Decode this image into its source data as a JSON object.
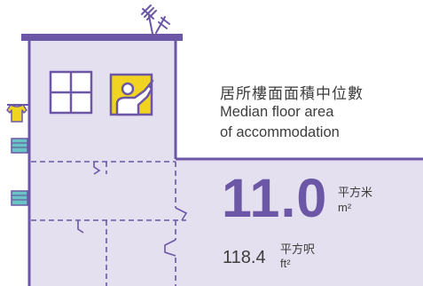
{
  "title": {
    "zh": "居所樓面面積中位數",
    "en_line1": "Median floor area",
    "en_line2": "of accommodation"
  },
  "metric": {
    "value_m2": "11.0",
    "unit_m2_zh": "平方米",
    "unit_m2_en": "m²",
    "value_ft2": "118.4",
    "unit_ft2_zh": "平方呎",
    "unit_ft2_en": "ft²"
  },
  "colors": {
    "purple": "#6b57a5",
    "lavender": "#e4e0ef",
    "yellow": "#f1d421",
    "teal": "#69c4c6",
    "text": "#3d3d3d"
  },
  "icons": {
    "antenna": "tv-antenna-icon",
    "window": "window-icon",
    "person": "waving-person-icon",
    "shirt": "hanging-shirt-icon",
    "ac": "air-conditioner-icon"
  }
}
